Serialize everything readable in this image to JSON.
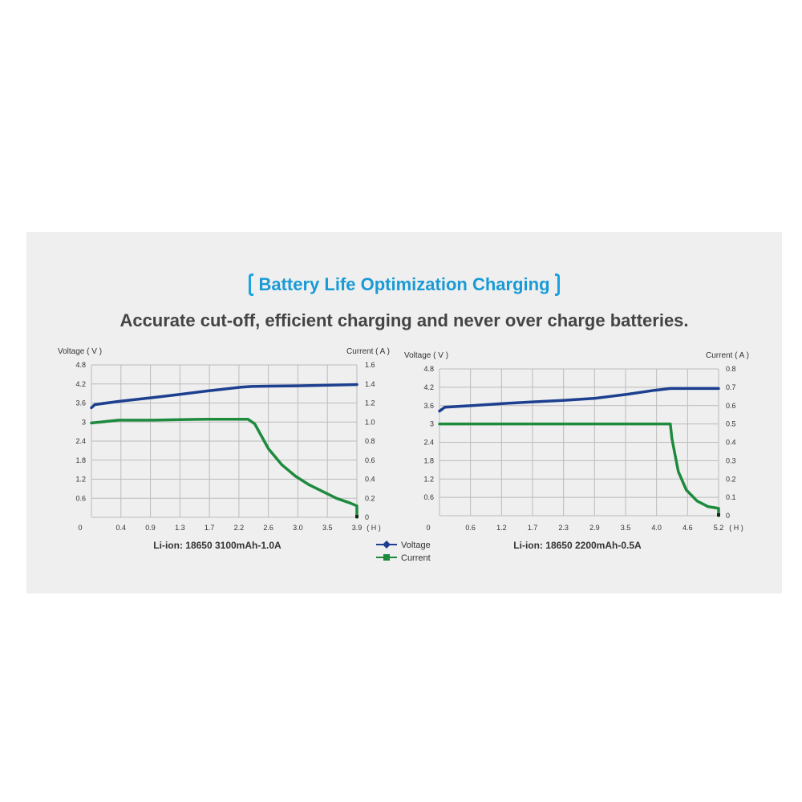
{
  "header": {
    "title": "Battery Life Optimization Charging",
    "subtitle": "Accurate cut-off, efficient charging and never over charge batteries."
  },
  "legend": {
    "voltage": "Voltage",
    "current": "Current"
  },
  "colors": {
    "voltage": "#1c3f8f",
    "current": "#1e8a3e",
    "title": "#1a9ad6",
    "grid": "#bbbbbb"
  },
  "chart_data": [
    {
      "type": "line",
      "caption": "Li-ion: 18650 3100mAh-1.0A",
      "ylabel_left": "Voltage ( V )",
      "ylabel_right": "Current ( A )",
      "x_unit": "( H )",
      "x_ticks": [
        "0",
        "0.4",
        "0.9",
        "1.3",
        "1.7",
        "2.2",
        "2.6",
        "3.0",
        "3.5",
        "3.9"
      ],
      "y_left_ticks": [
        "",
        "0.6",
        "1.2",
        "1.8",
        "2.4",
        "3",
        "3.6",
        "4.2",
        "4.8"
      ],
      "y_right_ticks": [
        "0",
        "0.2",
        "0.4",
        "0.6",
        "0.8",
        "1.0",
        "1.2",
        "1.4",
        "1.6"
      ],
      "x_range": [
        0,
        3.9
      ],
      "y_left_range": [
        0,
        4.8
      ],
      "y_right_range": [
        0,
        1.6
      ],
      "series": [
        {
          "name": "Voltage",
          "axis": "left",
          "x": [
            0,
            0.05,
            0.4,
            0.9,
            1.3,
            1.7,
            2.2,
            2.35,
            2.6,
            3.0,
            3.5,
            3.9
          ],
          "y": [
            3.45,
            3.55,
            3.65,
            3.77,
            3.87,
            3.98,
            4.1,
            4.12,
            4.13,
            4.14,
            4.16,
            4.18
          ]
        },
        {
          "name": "Current",
          "axis": "right",
          "x": [
            0,
            0.4,
            0.9,
            1.3,
            1.7,
            2.2,
            2.3,
            2.4,
            2.6,
            2.8,
            3.0,
            3.2,
            3.4,
            3.6,
            3.8,
            3.9,
            3.9
          ],
          "y": [
            0.99,
            1.02,
            1.02,
            1.025,
            1.03,
            1.03,
            1.03,
            0.98,
            0.72,
            0.55,
            0.43,
            0.34,
            0.27,
            0.2,
            0.15,
            0.12,
            0.0
          ]
        }
      ]
    },
    {
      "type": "line",
      "caption": "Li-ion: 18650 2200mAh-0.5A",
      "ylabel_left": "Voltage ( V )",
      "ylabel_right": "Current ( A )",
      "x_unit": "( H )",
      "x_ticks": [
        "0",
        "0.6",
        "1.2",
        "1.7",
        "2.3",
        "2.9",
        "3.5",
        "4.0",
        "4.6",
        "5.2"
      ],
      "y_left_ticks": [
        "",
        "0.6",
        "1.2",
        "1.8",
        "2.4",
        "3",
        "3.6",
        "4.2",
        "4.8"
      ],
      "y_right_ticks": [
        "0",
        "0.1",
        "0.2",
        "0.3",
        "0.4",
        "0.5",
        "0.6",
        "0.7",
        "0.8"
      ],
      "x_range": [
        0,
        5.2
      ],
      "y_left_range": [
        0,
        4.8
      ],
      "y_right_range": [
        0,
        0.8
      ],
      "series": [
        {
          "name": "Voltage",
          "axis": "left",
          "x": [
            0,
            0.1,
            0.6,
            1.2,
            1.7,
            2.3,
            2.9,
            3.5,
            4.0,
            4.3,
            4.6,
            5.2
          ],
          "y": [
            3.42,
            3.55,
            3.6,
            3.67,
            3.72,
            3.77,
            3.84,
            3.97,
            4.1,
            4.16,
            4.16,
            4.16
          ]
        },
        {
          "name": "Current",
          "axis": "right",
          "x": [
            0,
            0.6,
            1.2,
            2.3,
            3.5,
            4.3,
            4.33,
            4.45,
            4.6,
            4.8,
            5.0,
            5.2,
            5.2
          ],
          "y": [
            0.5,
            0.5,
            0.5,
            0.5,
            0.5,
            0.5,
            0.42,
            0.24,
            0.14,
            0.08,
            0.05,
            0.04,
            0.0
          ]
        }
      ]
    }
  ]
}
